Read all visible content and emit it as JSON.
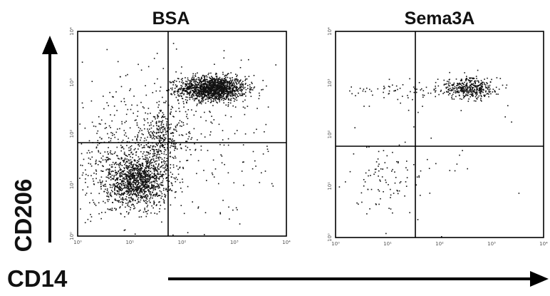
{
  "figure": {
    "y_axis_title": "CD206",
    "x_axis_title": "CD14"
  },
  "chart_data": [
    {
      "type": "scatter",
      "title": "BSA",
      "xlabel": "CD14",
      "ylabel": "CD206",
      "x_scale": "log",
      "y_scale": "log",
      "xlim": [
        1,
        10000
      ],
      "ylim": [
        1,
        10000
      ],
      "x_ticks": [
        "10⁰",
        "10¹",
        "10²",
        "10³",
        "10⁴"
      ],
      "y_ticks": [
        "10⁰",
        "10¹",
        "10²",
        "10³",
        "10⁴"
      ],
      "gates": {
        "x": 50,
        "y": 60
      },
      "grid": false,
      "populations": [
        {
          "name_hint": "CD14+ CD206+",
          "center": [
            380,
            780
          ],
          "spread_log": [
            0.32,
            0.12
          ],
          "count": 1500
        },
        {
          "name_hint": "CD14 low CD206 low",
          "center": [
            14,
            12
          ],
          "spread_log": [
            0.28,
            0.24
          ],
          "count": 1100
        },
        {
          "name_hint": "bridge",
          "center": [
            40,
            80
          ],
          "spread_log": [
            0.22,
            0.28
          ],
          "count": 300
        },
        {
          "name_hint": "CD14- CD206 low scatter",
          "center": [
            5,
            20
          ],
          "spread_log": [
            0.5,
            0.45
          ],
          "count": 400
        },
        {
          "name_hint": "scattered events",
          "center": [
            60,
            100
          ],
          "spread_log": [
            0.95,
            0.85
          ],
          "count": 380
        }
      ]
    },
    {
      "type": "scatter",
      "title": "Sema3A",
      "xlabel": "CD14",
      "ylabel": "CD206",
      "x_scale": "log",
      "y_scale": "log",
      "xlim": [
        1,
        10000
      ],
      "ylim": [
        1,
        10000
      ],
      "x_ticks": [
        "10⁰",
        "10¹",
        "10²",
        "10³",
        "10⁴"
      ],
      "y_ticks": [
        "10⁰",
        "10¹",
        "10²",
        "10³",
        "10⁴"
      ],
      "gates": {
        "x": 25,
        "y": 50
      },
      "grid": false,
      "populations": [
        {
          "name_hint": "CD14+ CD206+",
          "center": [
            350,
            800
          ],
          "spread_log": [
            0.28,
            0.1
          ],
          "count": 420
        },
        {
          "name_hint": "CD206+ low CD14",
          "center": [
            15,
            700
          ],
          "spread_log": [
            0.45,
            0.1
          ],
          "count": 60
        },
        {
          "name_hint": "CD206 low scatter",
          "center": [
            10,
            12
          ],
          "spread_log": [
            0.35,
            0.35
          ],
          "count": 90
        },
        {
          "name_hint": "scattered events",
          "center": [
            80,
            60
          ],
          "spread_log": [
            0.9,
            0.7
          ],
          "count": 25
        }
      ]
    }
  ]
}
